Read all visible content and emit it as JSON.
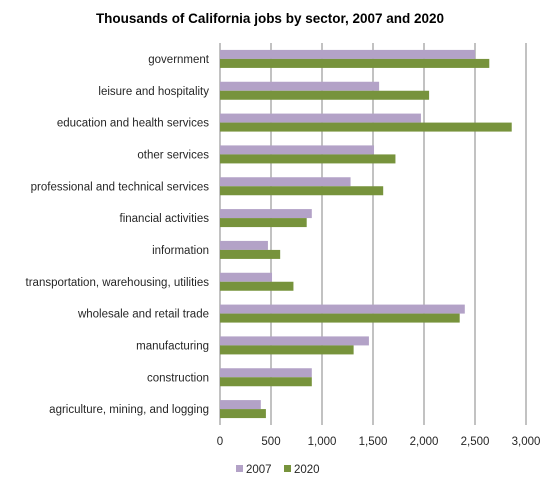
{
  "chart_data": {
    "type": "bar",
    "orientation": "horizontal",
    "title": "Thousands of California jobs by sector, 2007 and 2020",
    "xlabel": "",
    "ylabel": "",
    "xlim": [
      0,
      3000
    ],
    "x_ticks": [
      0,
      500,
      1000,
      1500,
      2000,
      2500,
      3000
    ],
    "x_tick_labels": [
      "0",
      "500",
      "1,000",
      "1,500",
      "2,000",
      "2,500",
      "3,000"
    ],
    "grid": "vertical major gridlines",
    "legend_position": "bottom",
    "categories": [
      "government",
      "leisure and hospitality",
      "education and health services",
      "other services",
      "professional and technical services",
      "financial activities",
      "information",
      "transportation, warehousing, utilities",
      "wholesale and retail trade",
      "manufacturing",
      "construction",
      "agriculture, mining, and logging"
    ],
    "series": [
      {
        "name": "2007",
        "color": "#b3a2c7",
        "values": [
          2500,
          1560,
          1970,
          1510,
          1280,
          900,
          470,
          510,
          2400,
          1460,
          900,
          400
        ]
      },
      {
        "name": "2020",
        "color": "#77933c",
        "values": [
          2640,
          2050,
          2860,
          1720,
          1600,
          850,
          590,
          720,
          2350,
          1310,
          900,
          450
        ]
      }
    ]
  }
}
